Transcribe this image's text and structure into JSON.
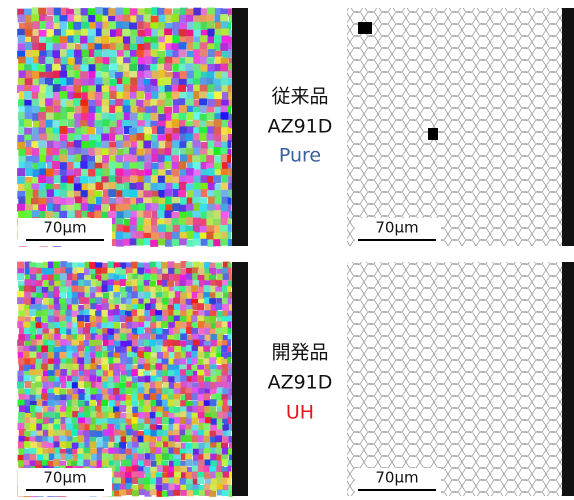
{
  "rows": [
    {
      "labels": [
        "従来品",
        "AZ91D",
        "Pure"
      ],
      "scale_bars": [
        "70μm",
        "70μm"
      ]
    },
    {
      "labels": [
        "開発品",
        "AZ91D",
        "UH"
      ],
      "scale_bars": [
        "70μm",
        "70μm"
      ]
    }
  ]
}
